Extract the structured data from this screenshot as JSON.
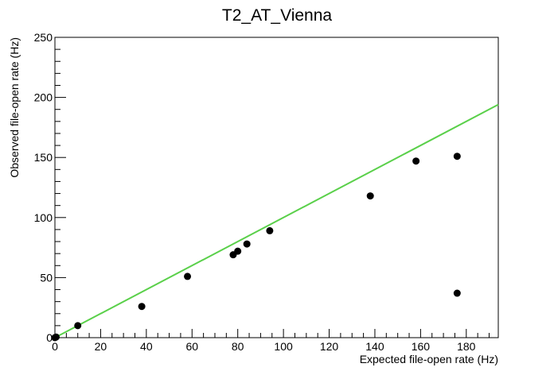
{
  "chart_data": {
    "type": "scatter",
    "title": "T2_AT_Vienna",
    "xlabel": "Expected file-open rate (Hz)",
    "ylabel": "Observed file-open rate (Hz)",
    "xlim": [
      0,
      194
    ],
    "ylim": [
      0,
      250
    ],
    "xticks": [
      0,
      20,
      40,
      60,
      80,
      100,
      120,
      140,
      160,
      180
    ],
    "yticks": [
      0,
      50,
      100,
      150,
      200,
      250
    ],
    "grid": false,
    "points": [
      {
        "x": 0,
        "y": 0
      },
      {
        "x": 0.5,
        "y": 0.5
      },
      {
        "x": 10,
        "y": 10
      },
      {
        "x": 38,
        "y": 26
      },
      {
        "x": 58,
        "y": 51
      },
      {
        "x": 78,
        "y": 69
      },
      {
        "x": 80,
        "y": 72
      },
      {
        "x": 84,
        "y": 78
      },
      {
        "x": 94,
        "y": 89
      },
      {
        "x": 138,
        "y": 118
      },
      {
        "x": 158,
        "y": 147
      },
      {
        "x": 176,
        "y": 151
      },
      {
        "x": 176,
        "y": 37
      }
    ],
    "reference_line": {
      "slope": 1,
      "intercept": 0,
      "color": "#5ad04a"
    },
    "marker_color": "#000000"
  }
}
